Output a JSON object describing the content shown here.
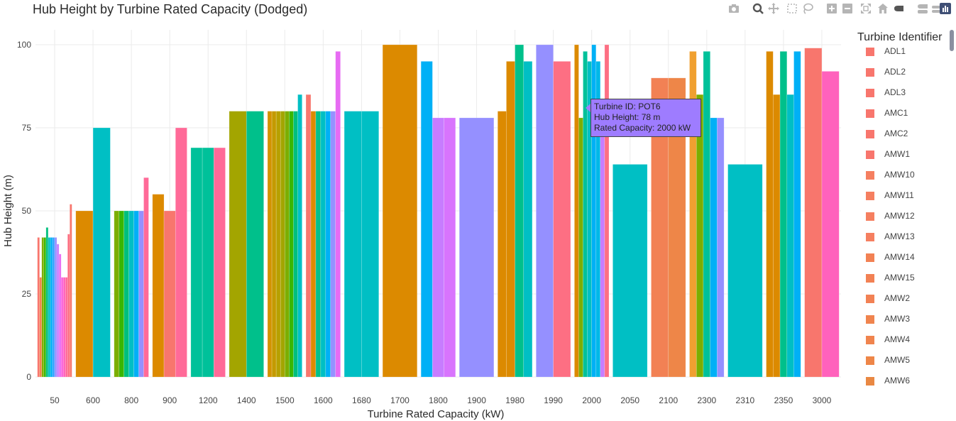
{
  "title": "Hub Height by Turbine Rated Capacity (Dodged)",
  "modebar": {
    "buttons": [
      "camera-icon",
      "zoom-icon",
      "pan-icon",
      "box-select-icon",
      "lasso-icon",
      "zoom-in-icon",
      "zoom-out-icon",
      "autoscale-icon",
      "reset-axes-icon",
      "spike-lines-icon",
      "hover-closest-icon",
      "hover-compare-icon",
      "plotly-logo-icon"
    ]
  },
  "legend": {
    "title": "Turbine Identifier",
    "items": [
      {
        "label": "ADL1",
        "color": "#f8766d"
      },
      {
        "label": "ADL2",
        "color": "#f8766d"
      },
      {
        "label": "ADL3",
        "color": "#f8766d"
      },
      {
        "label": "AMC1",
        "color": "#f8766d"
      },
      {
        "label": "AMC2",
        "color": "#f8766d"
      },
      {
        "label": "AMW1",
        "color": "#f8766d"
      },
      {
        "label": "AMW10",
        "color": "#f57f60"
      },
      {
        "label": "AMW11",
        "color": "#f57f60"
      },
      {
        "label": "AMW12",
        "color": "#f57f60"
      },
      {
        "label": "AMW13",
        "color": "#f57f60"
      },
      {
        "label": "AMW14",
        "color": "#f28154"
      },
      {
        "label": "AMW15",
        "color": "#f28154"
      },
      {
        "label": "AMW2",
        "color": "#f28154"
      },
      {
        "label": "AMW3",
        "color": "#f0844e"
      },
      {
        "label": "AMW4",
        "color": "#f0844e"
      },
      {
        "label": "AMW5",
        "color": "#ee8648"
      },
      {
        "label": "AMW6",
        "color": "#e98843"
      }
    ]
  },
  "tooltip": {
    "line1": "Turbine ID: POT6",
    "line2": "Hub Height: 78 m",
    "line3": "Rated Capacity: 2000 kW",
    "color": "#9e7cff"
  },
  "chart_data": {
    "type": "bar",
    "title": "Hub Height by Turbine Rated Capacity (Dodged)",
    "xlabel": "Turbine Rated Capacity (kW)",
    "ylabel": "Hub Height (m)",
    "ylim": [
      0,
      105
    ],
    "yticks": [
      0,
      25,
      50,
      75,
      100
    ],
    "grid": true,
    "legend_position": "right",
    "categories": [
      "50",
      "600",
      "800",
      "900",
      "1200",
      "1400",
      "1500",
      "1600",
      "1680",
      "1700",
      "1800",
      "1900",
      "1980",
      "1990",
      "2000",
      "2050",
      "2100",
      "2300",
      "2310",
      "2350",
      "3000"
    ],
    "groups": [
      {
        "category": "50",
        "bars": [
          {
            "v": 42,
            "c": "#f8766d"
          },
          {
            "v": 30,
            "c": "#f0844e"
          },
          {
            "v": 42,
            "c": "#7cae00"
          },
          {
            "v": 42,
            "c": "#39b600"
          },
          {
            "v": 45,
            "c": "#00bf7d"
          },
          {
            "v": 42,
            "c": "#00bfc4"
          },
          {
            "v": 42,
            "c": "#00b0f6"
          },
          {
            "v": 42,
            "c": "#35a2ff"
          },
          {
            "v": 42,
            "c": "#9590ff"
          },
          {
            "v": 40,
            "c": "#c77cff"
          },
          {
            "v": 37,
            "c": "#e76bf3"
          },
          {
            "v": 30,
            "c": "#fa62db"
          },
          {
            "v": 30,
            "c": "#ff62bc"
          },
          {
            "v": 30,
            "c": "#ff6a98"
          },
          {
            "v": 43,
            "c": "#fd6f83"
          },
          {
            "v": 52,
            "c": "#f8766d"
          }
        ]
      },
      {
        "category": "600",
        "bars": [
          {
            "v": 50,
            "c": "#dc8a00"
          },
          {
            "v": 75,
            "c": "#00bfc4"
          }
        ]
      },
      {
        "category": "800",
        "bars": [
          {
            "v": 50,
            "c": "#7cae00"
          },
          {
            "v": 50,
            "c": "#39b600"
          },
          {
            "v": 50,
            "c": "#00bf7d"
          },
          {
            "v": 50,
            "c": "#00bfc4"
          },
          {
            "v": 50,
            "c": "#00b0f6"
          },
          {
            "v": 50,
            "c": "#9590ff"
          },
          {
            "v": 60,
            "c": "#ff6a98"
          }
        ]
      },
      {
        "category": "900",
        "bars": [
          {
            "v": 55,
            "c": "#dc8a00"
          },
          {
            "v": 50,
            "c": "#f8766d"
          },
          {
            "v": 75,
            "c": "#ff6a98"
          }
        ]
      },
      {
        "category": "1200",
        "bars": [
          {
            "v": 69,
            "c": "#00c19a"
          },
          {
            "v": 69,
            "c": "#00c19a"
          },
          {
            "v": 69,
            "c": "#ff6a98"
          }
        ]
      },
      {
        "category": "1400",
        "bars": [
          {
            "v": 80,
            "c": "#a3a500"
          },
          {
            "v": 80,
            "c": "#00c08b"
          }
        ]
      },
      {
        "category": "1500",
        "bars": [
          {
            "v": 80,
            "c": "#d39200"
          },
          {
            "v": 80,
            "c": "#c49a00"
          },
          {
            "v": 80,
            "c": "#b7a000"
          },
          {
            "v": 80,
            "c": "#a3a500"
          },
          {
            "v": 80,
            "c": "#7cae00"
          },
          {
            "v": 80,
            "c": "#39b600"
          },
          {
            "v": 80,
            "c": "#00bf7d"
          },
          {
            "v": 85,
            "c": "#00bfc4"
          }
        ]
      },
      {
        "category": "1600",
        "bars": [
          {
            "v": 85,
            "c": "#f8766d"
          },
          {
            "v": 80,
            "c": "#dc8a00"
          },
          {
            "v": 80,
            "c": "#00c08b"
          },
          {
            "v": 80,
            "c": "#00bfc4"
          },
          {
            "v": 80,
            "c": "#00b0f6"
          },
          {
            "v": 80,
            "c": "#9590ff"
          },
          {
            "v": 98,
            "c": "#e76bf3"
          }
        ]
      },
      {
        "category": "1680",
        "bars": [
          {
            "v": 80,
            "c": "#00bfc4"
          },
          {
            "v": 80,
            "c": "#00bfc4"
          }
        ]
      },
      {
        "category": "1700",
        "bars": [
          {
            "v": 100,
            "c": "#dc8a00"
          }
        ]
      },
      {
        "category": "1800",
        "bars": [
          {
            "v": 95,
            "c": "#00b0f6"
          },
          {
            "v": 78,
            "c": "#c77cff"
          },
          {
            "v": 78,
            "c": "#d874fd"
          }
        ]
      },
      {
        "category": "1900",
        "bars": [
          {
            "v": 78,
            "c": "#9590ff"
          }
        ]
      },
      {
        "category": "1980",
        "bars": [
          {
            "v": 80,
            "c": "#dc8a00"
          },
          {
            "v": 95,
            "c": "#dc8a00"
          },
          {
            "v": 100,
            "c": "#00c08b"
          },
          {
            "v": 95,
            "c": "#00bfc4"
          }
        ]
      },
      {
        "category": "1990",
        "bars": [
          {
            "v": 100,
            "c": "#9590ff"
          },
          {
            "v": 95,
            "c": "#fd6f83"
          }
        ]
      },
      {
        "category": "2000",
        "bars": [
          {
            "v": 100,
            "c": "#dc8a00"
          },
          {
            "v": 78,
            "c": "#7cae00"
          },
          {
            "v": 98,
            "c": "#00c19a"
          },
          {
            "v": 95,
            "c": "#00bfc4"
          },
          {
            "v": 100,
            "c": "#00b0f6"
          },
          {
            "v": 95,
            "c": "#00b8e7"
          },
          {
            "v": 78,
            "c": "#c77cff"
          },
          {
            "v": 100,
            "c": "#fd6f83"
          }
        ]
      },
      {
        "category": "2050",
        "bars": [
          {
            "v": 64,
            "c": "#00bfc4"
          }
        ]
      },
      {
        "category": "2100",
        "bars": [
          {
            "v": 90,
            "c": "#f28154"
          },
          {
            "v": 90,
            "c": "#ee8648"
          }
        ]
      },
      {
        "category": "2300",
        "bars": [
          {
            "v": 98,
            "c": "#f0a030"
          },
          {
            "v": 85,
            "c": "#7cae00"
          },
          {
            "v": 98,
            "c": "#00c19a"
          },
          {
            "v": 78,
            "c": "#00b0f6"
          },
          {
            "v": 78,
            "c": "#9590ff"
          }
        ]
      },
      {
        "category": "2310",
        "bars": [
          {
            "v": 64,
            "c": "#00bfc4"
          }
        ]
      },
      {
        "category": "2350",
        "bars": [
          {
            "v": 98,
            "c": "#dc8a00"
          },
          {
            "v": 85,
            "c": "#dc8a00"
          },
          {
            "v": 98,
            "c": "#00c08b"
          },
          {
            "v": 85,
            "c": "#00bfc4"
          },
          {
            "v": 98,
            "c": "#00b0f6"
          }
        ]
      },
      {
        "category": "3000",
        "bars": [
          {
            "v": 99,
            "c": "#f8766d"
          },
          {
            "v": 92,
            "c": "#ff62bc"
          }
        ]
      }
    ]
  }
}
